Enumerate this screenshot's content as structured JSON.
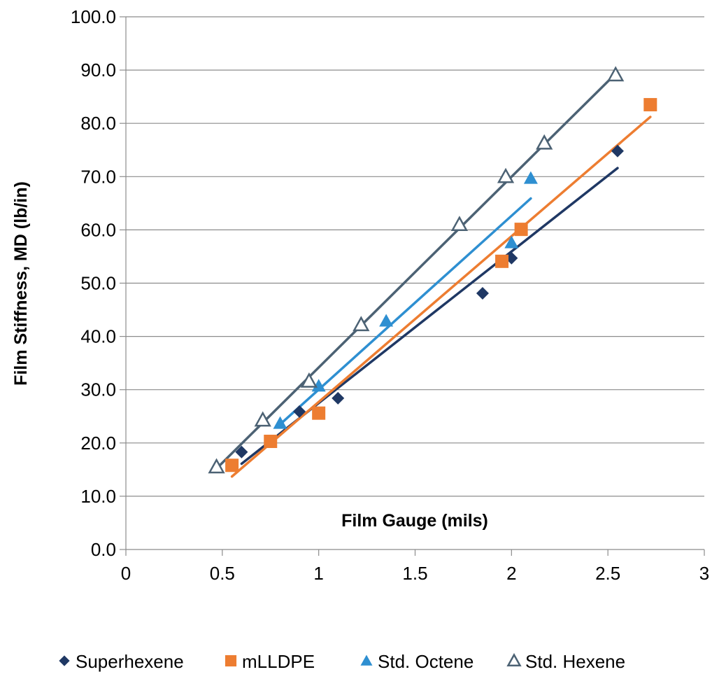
{
  "chart_data": {
    "type": "scatter",
    "title": "",
    "xlabel": "Film Gauge (mils)",
    "ylabel": "Film Stiffness, MD (lb/in)",
    "xlim": [
      0,
      3
    ],
    "ylim": [
      0,
      100
    ],
    "x_ticks": [
      "0",
      "0.5",
      "1",
      "1.5",
      "2",
      "2.5",
      "3"
    ],
    "y_ticks": [
      "0.0",
      "10.0",
      "20.0",
      "30.0",
      "40.0",
      "50.0",
      "60.0",
      "70.0",
      "80.0",
      "90.0",
      "100.0"
    ],
    "grid": "horizontal",
    "legend_position": "bottom",
    "series": [
      {
        "name": "Superhexene",
        "marker": "diamond",
        "color": "#1f3864",
        "points": [
          [
            0.6,
            18.3
          ],
          [
            0.9,
            25.9
          ],
          [
            1.1,
            28.4
          ],
          [
            1.85,
            48.1
          ],
          [
            2.0,
            54.7
          ],
          [
            2.55,
            74.8
          ]
        ],
        "trendline": [
          [
            0.6,
            16.1
          ],
          [
            2.55,
            71.6
          ]
        ]
      },
      {
        "name": "mLLDPE",
        "marker": "square",
        "color": "#ed7d31",
        "points": [
          [
            0.55,
            15.8
          ],
          [
            0.75,
            20.3
          ],
          [
            1.0,
            25.6
          ],
          [
            1.95,
            54.1
          ],
          [
            2.05,
            60.1
          ],
          [
            2.72,
            83.5
          ]
        ],
        "trendline": [
          [
            0.55,
            13.7
          ],
          [
            2.72,
            81.2
          ]
        ]
      },
      {
        "name": "Std. Octene",
        "marker": "triangle",
        "color": "#2e8fd1",
        "points": [
          [
            0.8,
            23.7
          ],
          [
            1.0,
            30.7
          ],
          [
            1.35,
            42.9
          ],
          [
            2.0,
            57.6
          ],
          [
            2.1,
            69.7
          ]
        ],
        "trendline": [
          [
            0.8,
            23.5
          ],
          [
            2.1,
            65.9
          ]
        ]
      },
      {
        "name": "Std. Hexene",
        "marker": "triangle-open",
        "color": "#4c6274",
        "points": [
          [
            0.47,
            15.5
          ],
          [
            0.71,
            24.3
          ],
          [
            0.95,
            31.6
          ],
          [
            1.22,
            42.2
          ],
          [
            1.73,
            61.0
          ],
          [
            1.97,
            70.0
          ],
          [
            2.17,
            76.3
          ],
          [
            2.54,
            89.1
          ]
        ],
        "trendline": [
          [
            0.47,
            15.2
          ],
          [
            2.54,
            89.3
          ]
        ]
      }
    ]
  }
}
